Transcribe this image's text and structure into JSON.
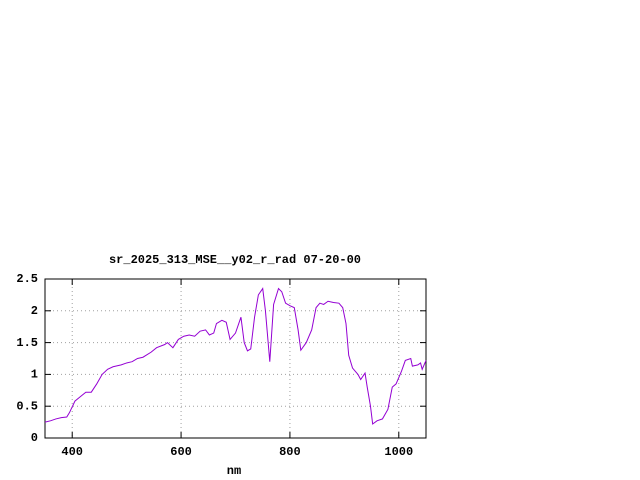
{
  "chart_data": {
    "type": "line",
    "title": "sr_2025_313_MSE__y02_r_rad 07-20-00",
    "x_label": "nm",
    "x": [
      350,
      360,
      370,
      380,
      390,
      395,
      405,
      415,
      425,
      435,
      445,
      455,
      465,
      475,
      490,
      500,
      510,
      520,
      530,
      545,
      555,
      570,
      575,
      585,
      595,
      605,
      615,
      625,
      635,
      645,
      652,
      660,
      665,
      675,
      683,
      690,
      700,
      710,
      716,
      722,
      728,
      735,
      742,
      750,
      755,
      763,
      770,
      779,
      785,
      792,
      800,
      808,
      815,
      820,
      830,
      840,
      848,
      855,
      862,
      870,
      880,
      890,
      897,
      903,
      908,
      915,
      925,
      930,
      938,
      942,
      948,
      952,
      960,
      970,
      980,
      988,
      995,
      1005,
      1012,
      1022,
      1025,
      1035,
      1040,
      1043,
      1050
    ],
    "series": [
      {
        "color": "#9400d3",
        "values": [
          0.25,
          0.27,
          0.3,
          0.32,
          0.33,
          0.4,
          0.58,
          0.65,
          0.72,
          0.72,
          0.85,
          1.0,
          1.08,
          1.12,
          1.15,
          1.18,
          1.2,
          1.25,
          1.27,
          1.35,
          1.42,
          1.47,
          1.5,
          1.42,
          1.55,
          1.6,
          1.62,
          1.6,
          1.68,
          1.7,
          1.62,
          1.65,
          1.8,
          1.85,
          1.82,
          1.55,
          1.65,
          1.9,
          1.5,
          1.37,
          1.4,
          1.9,
          2.25,
          2.35,
          2.0,
          1.2,
          2.1,
          2.35,
          2.3,
          2.12,
          2.08,
          2.05,
          1.7,
          1.38,
          1.5,
          1.7,
          2.05,
          2.12,
          2.1,
          2.15,
          2.13,
          2.12,
          2.05,
          1.8,
          1.3,
          1.1,
          1.0,
          0.92,
          1.02,
          0.8,
          0.5,
          0.22,
          0.27,
          0.3,
          0.45,
          0.8,
          0.85,
          1.05,
          1.22,
          1.25,
          1.13,
          1.15,
          1.18,
          1.08,
          1.22
        ]
      }
    ],
    "xlim": [
      350,
      1050
    ],
    "ylim": [
      0,
      2.5
    ],
    "xticks": [
      400,
      600,
      800,
      1000
    ],
    "yticks": [
      0,
      0.5,
      1,
      1.5,
      2,
      2.5
    ],
    "grid": true
  }
}
